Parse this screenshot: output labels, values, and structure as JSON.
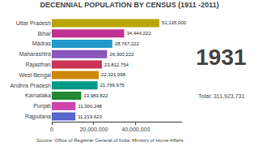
{
  "chart_data": {
    "type": "bar",
    "orientation": "horizontal",
    "title": "DECENNIAL POPULATION BY CENSUS (1911 -2011)",
    "categories": [
      "Uttar Pradesh",
      "Bihar",
      "Madras",
      "Maharashtra",
      "Rajasthan",
      "West Bengal",
      "Andhra Pradesh",
      "Karnataka",
      "Punjab",
      "Rajputana"
    ],
    "values": [
      51135000,
      34444222,
      28767222,
      26300222,
      23812754,
      22321098,
      21769975,
      13983822,
      11300248,
      11219623
    ],
    "value_labels": [
      "51,135,000",
      "34,444,222",
      "28,767,222",
      "26,300,222",
      "23,812,754",
      "22,321,098",
      "21,769,975",
      "13,983,822",
      "11,300,248",
      "11,219,623"
    ],
    "colors": [
      "#b8a500",
      "#c03090",
      "#2299cc",
      "#8855bb",
      "#cc3355",
      "#cc8800",
      "#009988",
      "#228833",
      "#cc44aa",
      "#5566cc"
    ],
    "data_labels": true,
    "xlim": [
      0,
      62000000
    ],
    "xticks": [
      0,
      {
        "value": 20000000,
        "label": "20,000,000"
      },
      {
        "value": 40000000,
        "label": "40,000,000"
      }
    ],
    "grid": false,
    "annotations": [
      "1931",
      "Total: 311,923,731",
      "Source: Office of Registrar General of India, Ministry of Home Affairs"
    ]
  }
}
